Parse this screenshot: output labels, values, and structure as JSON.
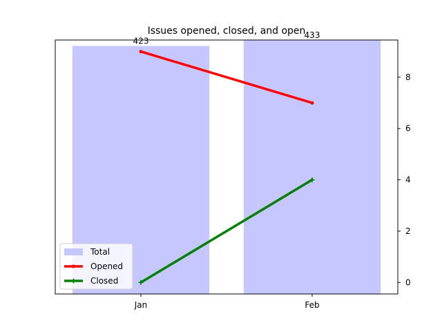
{
  "chart_data": {
    "type": "bar",
    "title": "Issues opened, closed, and open",
    "categories": [
      "Jan",
      "Feb"
    ],
    "bar_series": {
      "name": "Total",
      "values": [
        423,
        433
      ],
      "color": "#c7c7ff",
      "data_labels": [
        "423",
        "433"
      ],
      "bar_axis_max": 433
    },
    "series": [
      {
        "name": "Opened",
        "values": [
          9,
          7
        ],
        "color": "#ff0000",
        "marker": "dot"
      },
      {
        "name": "Closed",
        "values": [
          0,
          4
        ],
        "color": "#008000",
        "marker": "plus"
      }
    ],
    "y2": {
      "position": "right",
      "ylim": [
        -0.45,
        9.45
      ],
      "ticks": [
        0,
        2,
        4,
        6,
        8
      ],
      "tick_labels": [
        "0",
        "2",
        "4",
        "6",
        "8"
      ]
    },
    "grid": false,
    "legend": {
      "placement": "lower-left",
      "entries": [
        "Total",
        "Opened",
        "Closed"
      ]
    }
  }
}
